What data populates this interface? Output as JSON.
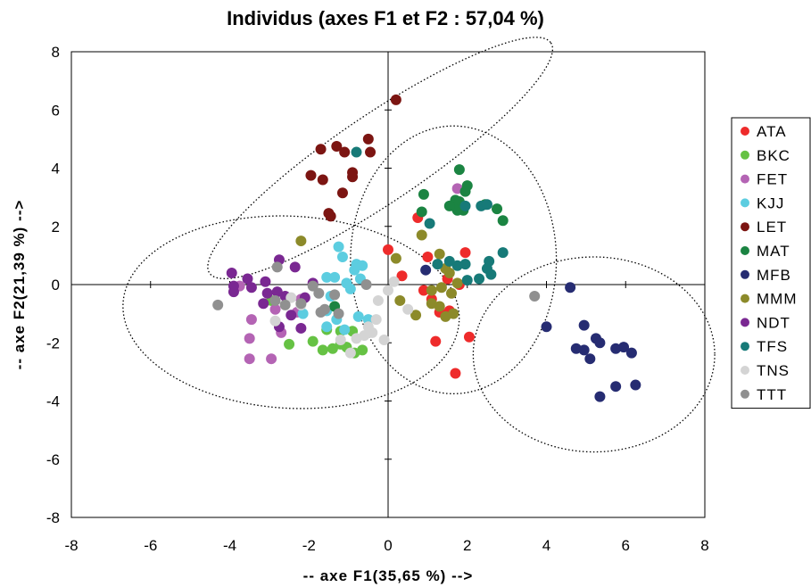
{
  "chart_data": {
    "type": "scatter",
    "title": "Individus (axes F1 et F2 : 57,04 %)",
    "xlabel": "-- axe F1(35,65 %) -->",
    "ylabel": "-- axe F2(21,39 %) -->",
    "xlim": [
      -8,
      8
    ],
    "ylim": [
      -8,
      8
    ],
    "x_ticks": [
      "-8",
      "-6",
      "-4",
      "-2",
      "0",
      "2",
      "4",
      "6",
      "8"
    ],
    "y_ticks": [
      "8",
      "6",
      "4",
      "2",
      "0",
      "-2",
      "-4",
      "-6",
      "-8"
    ],
    "grid": false,
    "legend_position": "right",
    "series": [
      {
        "name": "ATA",
        "color": "#ee2b2b",
        "points": [
          [
            0,
            1.2
          ],
          [
            0.35,
            0.3
          ],
          [
            0.75,
            2.3
          ],
          [
            1.0,
            0.95
          ],
          [
            0.9,
            -0.2
          ],
          [
            1.3,
            -0.95
          ],
          [
            1.55,
            -0.9
          ],
          [
            1.2,
            -1.95
          ],
          [
            1.7,
            -3.05
          ],
          [
            2.05,
            -1.8
          ],
          [
            1.95,
            1.1
          ],
          [
            1.5,
            0.2
          ],
          [
            1.8,
            0
          ],
          [
            1.1,
            -0.5
          ]
        ]
      },
      {
        "name": "BKC",
        "color": "#66c244",
        "points": [
          [
            -2.5,
            -2.05
          ],
          [
            -1.9,
            -1.95
          ],
          [
            -1.65,
            -2.25
          ],
          [
            -1.4,
            -2.2
          ],
          [
            -1.2,
            -1.6
          ],
          [
            -1.2,
            -2.05
          ],
          [
            -0.9,
            -1.6
          ],
          [
            -1.05,
            -2.15
          ],
          [
            -0.85,
            -2.35
          ],
          [
            -0.65,
            -2.25
          ],
          [
            -1.55,
            -1.55
          ],
          [
            -2.95,
            -0.55
          ]
        ]
      },
      {
        "name": "FET",
        "color": "#b464b4",
        "points": [
          [
            -3.5,
            -2.55
          ],
          [
            -3.5,
            -1.85
          ],
          [
            -3.45,
            -1.2
          ],
          [
            -2.95,
            -2.55
          ],
          [
            -2.85,
            -0.85
          ],
          [
            -2.3,
            -0.95
          ],
          [
            -2.2,
            -0.5
          ],
          [
            -3.75,
            -0.05
          ],
          [
            1.75,
            3.3
          ],
          [
            -2.7,
            -1.65
          ]
        ]
      },
      {
        "name": "KJJ",
        "color": "#5ccde0",
        "points": [
          [
            -1.25,
            1.3
          ],
          [
            -1.15,
            0.95
          ],
          [
            -1.55,
            0.25
          ],
          [
            -1.35,
            0.25
          ],
          [
            -1.05,
            0.05
          ],
          [
            -0.85,
            0.5
          ],
          [
            -0.8,
            0.7
          ],
          [
            -0.65,
            0.65
          ],
          [
            -1.45,
            -0.4
          ],
          [
            -1.55,
            -0.9
          ],
          [
            -1.3,
            -1.2
          ],
          [
            -1.1,
            -1.55
          ],
          [
            -0.75,
            -1.1
          ],
          [
            -0.5,
            -1.2
          ],
          [
            -1.55,
            -1.45
          ],
          [
            -2.15,
            -1.0
          ],
          [
            -0.95,
            -0.15
          ],
          [
            -0.7,
            0.2
          ]
        ]
      },
      {
        "name": "LET",
        "color": "#7c1512",
        "points": [
          [
            0.2,
            6.35
          ],
          [
            -1.7,
            4.65
          ],
          [
            -1.3,
            4.75
          ],
          [
            -1.1,
            4.55
          ],
          [
            -0.5,
            5.0
          ],
          [
            -0.45,
            4.55
          ],
          [
            -1.95,
            3.75
          ],
          [
            -1.65,
            3.6
          ],
          [
            -0.9,
            3.85
          ],
          [
            -0.9,
            3.7
          ],
          [
            -1.15,
            3.15
          ],
          [
            -1.5,
            2.45
          ],
          [
            -1.45,
            2.35
          ]
        ]
      },
      {
        "name": "MAT",
        "color": "#1b8442",
        "points": [
          [
            1.8,
            3.95
          ],
          [
            0.9,
            3.1
          ],
          [
            1.95,
            3.2
          ],
          [
            2.0,
            3.4
          ],
          [
            1.7,
            2.9
          ],
          [
            1.65,
            2.7
          ],
          [
            1.8,
            2.85
          ],
          [
            1.9,
            2.55
          ],
          [
            1.75,
            2.55
          ],
          [
            2.45,
            2.75
          ],
          [
            2.75,
            2.6
          ],
          [
            2.9,
            2.2
          ],
          [
            0.85,
            2.5
          ],
          [
            1.55,
            2.7
          ],
          [
            -1.35,
            -0.75
          ]
        ]
      },
      {
        "name": "MFB",
        "color": "#262c72",
        "points": [
          [
            4.6,
            -0.1
          ],
          [
            4.0,
            -1.45
          ],
          [
            4.95,
            -1.4
          ],
          [
            4.75,
            -2.2
          ],
          [
            4.95,
            -2.25
          ],
          [
            5.25,
            -1.85
          ],
          [
            5.35,
            -2.0
          ],
          [
            5.75,
            -2.2
          ],
          [
            5.95,
            -2.15
          ],
          [
            6.15,
            -2.35
          ],
          [
            5.1,
            -2.55
          ],
          [
            5.75,
            -3.5
          ],
          [
            6.25,
            -3.45
          ],
          [
            5.35,
            -3.85
          ],
          [
            0.95,
            0.5
          ]
        ]
      },
      {
        "name": "MMM",
        "color": "#8c8a2a",
        "points": [
          [
            0.2,
            0.9
          ],
          [
            0.85,
            1.7
          ],
          [
            0.3,
            -0.55
          ],
          [
            0.7,
            -1.05
          ],
          [
            1.1,
            -0.2
          ],
          [
            1.3,
            1.05
          ],
          [
            1.35,
            -0.1
          ],
          [
            1.1,
            -0.65
          ],
          [
            1.3,
            -0.75
          ],
          [
            1.45,
            0.55
          ],
          [
            1.55,
            0.4
          ],
          [
            1.6,
            -0.3
          ],
          [
            1.65,
            -1.0
          ],
          [
            -2.2,
            1.5
          ],
          [
            1.45,
            -1.1
          ],
          [
            1.75,
            0.05
          ]
        ]
      },
      {
        "name": "NDT",
        "color": "#7a2892",
        "points": [
          [
            -3.95,
            0.4
          ],
          [
            -3.9,
            -0.05
          ],
          [
            -3.9,
            -0.25
          ],
          [
            -3.55,
            0.2
          ],
          [
            -3.45,
            -0.1
          ],
          [
            -3.1,
            0.1
          ],
          [
            -3.05,
            -0.3
          ],
          [
            -2.8,
            -0.25
          ],
          [
            -2.6,
            -0.4
          ],
          [
            -2.35,
            0.6
          ],
          [
            -2.1,
            -0.45
          ],
          [
            -1.9,
            0.05
          ],
          [
            -2.75,
            0.85
          ],
          [
            -3.15,
            -0.65
          ],
          [
            -2.45,
            -1.05
          ],
          [
            -2.2,
            -1.5
          ],
          [
            -2.75,
            -1.45
          ]
        ]
      },
      {
        "name": "TFS",
        "color": "#177a78",
        "points": [
          [
            -0.8,
            4.55
          ],
          [
            1.05,
            2.1
          ],
          [
            1.95,
            2.7
          ],
          [
            2.35,
            2.7
          ],
          [
            2.5,
            2.75
          ],
          [
            1.95,
            0.7
          ],
          [
            1.25,
            0.7
          ],
          [
            1.55,
            0.8
          ],
          [
            1.75,
            0.65
          ],
          [
            2.0,
            0.15
          ],
          [
            2.3,
            0.2
          ],
          [
            2.5,
            0.55
          ],
          [
            2.55,
            0.8
          ],
          [
            2.9,
            1.1
          ],
          [
            2.6,
            0.35
          ]
        ]
      },
      {
        "name": "TNS",
        "color": "#d4d4d4",
        "points": [
          [
            -0.5,
            -1.45
          ],
          [
            -0.3,
            -1.2
          ],
          [
            -0.25,
            -0.55
          ],
          [
            0,
            -0.2
          ],
          [
            -0.1,
            -1.9
          ],
          [
            0.15,
            0.1
          ],
          [
            0.5,
            -0.85
          ],
          [
            -0.8,
            -1.85
          ],
          [
            -0.95,
            -2.35
          ],
          [
            -1.2,
            -1.9
          ],
          [
            -2.2,
            -0.7
          ],
          [
            -2.45,
            -0.45
          ],
          [
            -2.85,
            -1.25
          ],
          [
            -0.4,
            -1.65
          ],
          [
            -0.6,
            -1.75
          ]
        ]
      },
      {
        "name": "TTT",
        "color": "#909090",
        "points": [
          [
            3.7,
            -0.4
          ],
          [
            -4.3,
            -0.7
          ],
          [
            -2.8,
            0.6
          ],
          [
            -2.6,
            -0.7
          ],
          [
            -2.2,
            -0.65
          ],
          [
            -1.9,
            -0.05
          ],
          [
            -1.75,
            -0.3
          ],
          [
            -1.6,
            -0.85
          ],
          [
            -1.7,
            -0.95
          ],
          [
            -1.35,
            -0.35
          ],
          [
            -1.25,
            -1.0
          ],
          [
            -0.55,
            0.0
          ],
          [
            -2.85,
            -0.55
          ]
        ]
      }
    ],
    "ellipses": [
      {
        "cx": -0.2,
        "cy": 4.35,
        "rx": 5.2,
        "ry": 1.5,
        "angle": 34
      },
      {
        "cx": -2.45,
        "cy": -0.95,
        "rx": 4.25,
        "ry": 3.3,
        "angle": -3
      },
      {
        "cx": 1.65,
        "cy": 0.85,
        "rx": 2.6,
        "ry": 4.6,
        "angle": 0
      },
      {
        "cx": 5.2,
        "cy": -2.4,
        "rx": 3.05,
        "ry": 3.35,
        "angle": 0
      }
    ]
  }
}
